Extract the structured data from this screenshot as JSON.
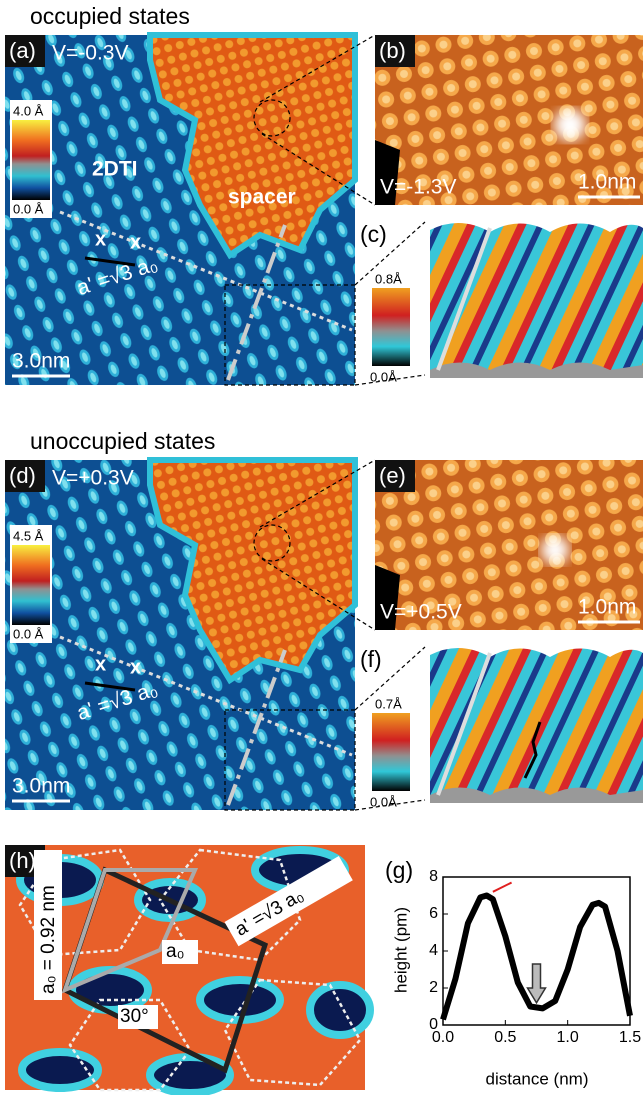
{
  "panel_a": {
    "heading": "occupied states",
    "label": "(a)",
    "bias": "V=-0.3V",
    "cbar_max": "4.0 Å",
    "cbar_min": "0.0 Å",
    "region_1": "2DTI",
    "region_2": "spacer",
    "lattice": "a' =√3 a₀",
    "scale": "3.0nm"
  },
  "panel_b": {
    "label": "(b)",
    "bias": "V=-1.3V",
    "scale": "1.0nm"
  },
  "panel_c": {
    "label": "(c)",
    "cbar_max": "0.8Å",
    "cbar_min": "0.0Å"
  },
  "panel_d": {
    "heading": "unoccupied states",
    "label": "(d)",
    "bias": "V=+0.3V",
    "cbar_max": "4.5 Å",
    "cbar_min": "0.0 Å",
    "lattice": "a' =√3 a₀",
    "scale": "3.0nm"
  },
  "panel_e": {
    "label": "(e)",
    "bias": "V=+0.5V",
    "scale": "1.0nm"
  },
  "panel_f": {
    "label": "(f)",
    "cbar_max": "0.7Å",
    "cbar_min": "0.0Å"
  },
  "panel_h": {
    "label": "(h)",
    "a0": "a₀ = 0.92 nm",
    "lattice": "a' =√3 a₀",
    "a0_short": "a₀",
    "angle": "30°"
  },
  "chart_data": {
    "type": "line",
    "label": "(g)",
    "xlabel": "distance (nm)",
    "ylabel": "height (pm)",
    "x": [
      0,
      0.1,
      0.2,
      0.3,
      0.35,
      0.4,
      0.5,
      0.6,
      0.7,
      0.8,
      0.9,
      1.0,
      1.1,
      1.2,
      1.25,
      1.3,
      1.4,
      1.5
    ],
    "values": [
      0.3,
      2.5,
      5.5,
      6.9,
      7.0,
      6.8,
      4.8,
      2.3,
      1.0,
      0.9,
      1.3,
      3.0,
      5.3,
      6.5,
      6.6,
      6.4,
      4.0,
      0.5
    ],
    "color": "#000000",
    "xlim": [
      0,
      1.5
    ],
    "xticks": [
      {
        "value": 0,
        "label": "0.0"
      },
      {
        "value": 0.5,
        "label": "0.5"
      },
      {
        "value": 1,
        "label": "1.0"
      },
      {
        "value": 1.5,
        "label": "1.5"
      }
    ],
    "ylim": [
      0,
      8
    ],
    "yticks": [
      0,
      2,
      4,
      6,
      8
    ]
  }
}
